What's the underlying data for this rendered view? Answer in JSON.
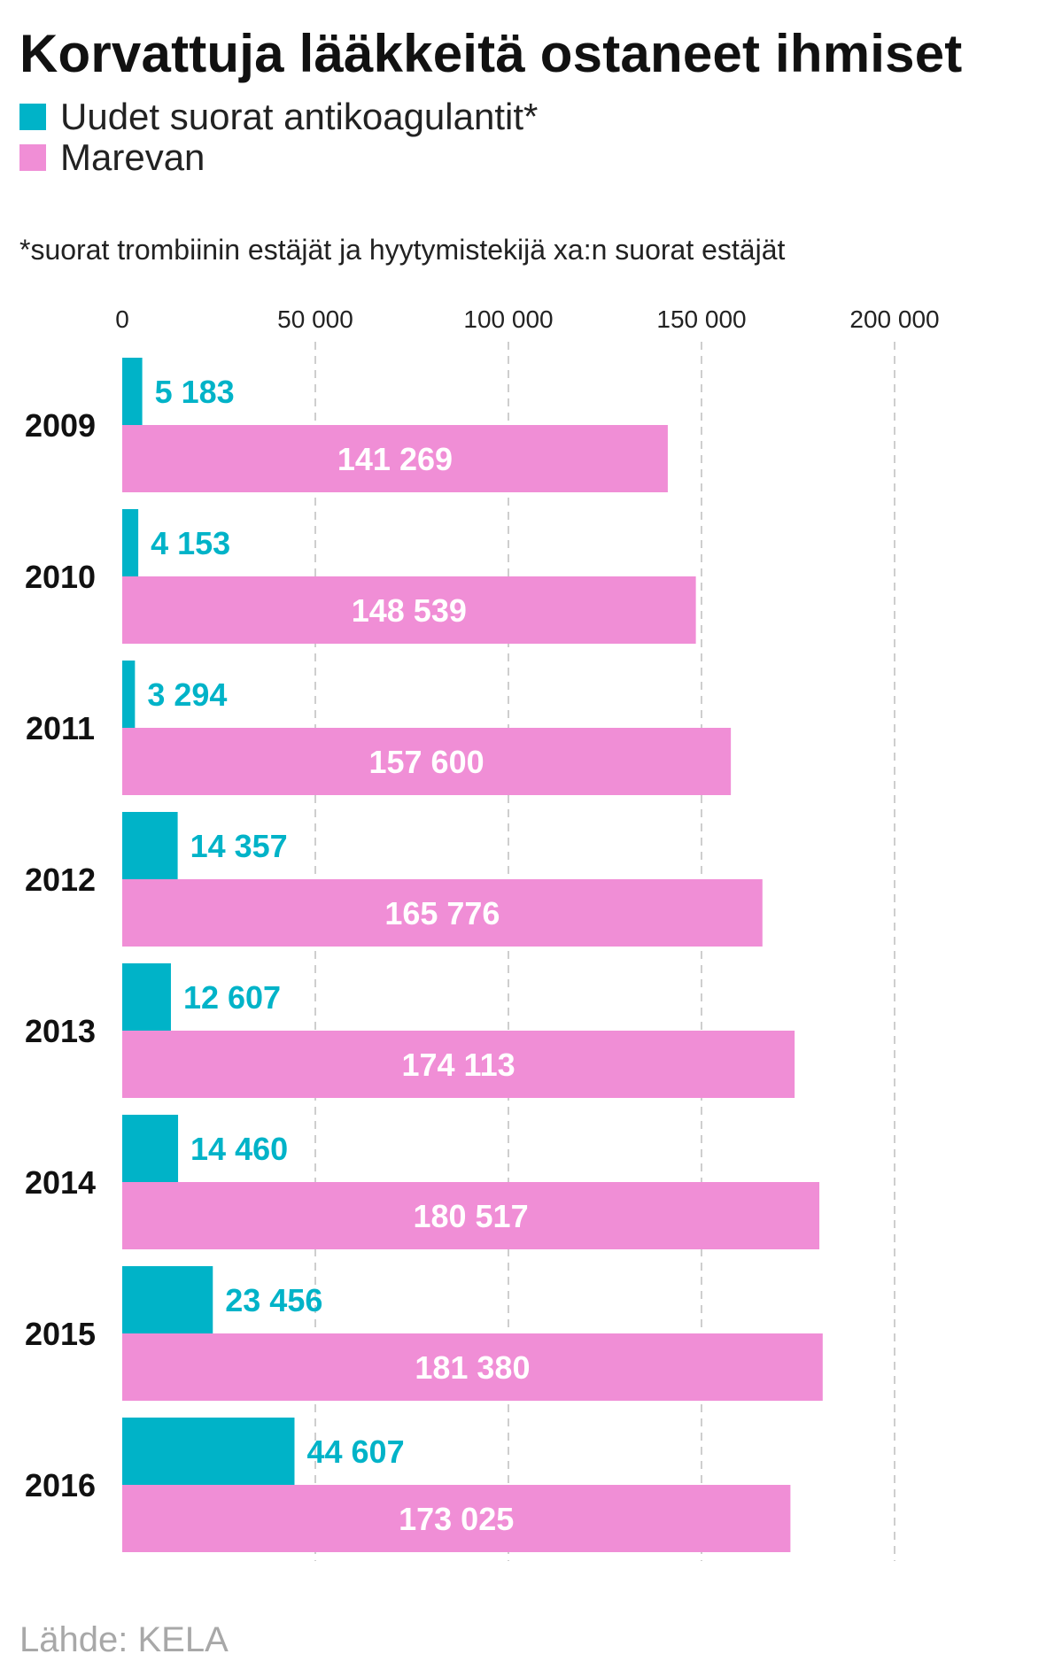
{
  "title": "Korvattuja lääkkeitä ostaneet ihmiset",
  "legend": [
    {
      "label": "Uudet suorat antikoagulantit*",
      "color": "#00b3c8"
    },
    {
      "label": "Marevan",
      "color": "#f08ed6"
    }
  ],
  "footnote": "*suorat trombiinin estäjät ja hyytymistekijä xa:n suorat estäjät",
  "source": "Lähde: KELA",
  "chart_data": {
    "type": "bar",
    "orientation": "horizontal",
    "categories": [
      "2009",
      "2010",
      "2011",
      "2012",
      "2013",
      "2014",
      "2015",
      "2016"
    ],
    "series": [
      {
        "name": "Uudet suorat antikoagulantit*",
        "color": "#00b3c8",
        "label_color": "#00b3c8",
        "values": [
          5183,
          4153,
          3294,
          14357,
          12607,
          14460,
          23456,
          44607
        ],
        "labels": [
          "5 183",
          "4 153",
          "3 294",
          "14 357",
          "12 607",
          "14 460",
          "23 456",
          "44 607"
        ]
      },
      {
        "name": "Marevan",
        "color": "#f08ed6",
        "label_color": "#ffffff",
        "values": [
          141269,
          148539,
          157600,
          165776,
          174113,
          180517,
          181380,
          173025
        ],
        "labels": [
          "141 269",
          "148 539",
          "157 600",
          "165 776",
          "174 113",
          "180 517",
          "181 380",
          "173 025"
        ]
      }
    ],
    "xlim": [
      0,
      200000
    ],
    "ticks": [
      0,
      50000,
      100000,
      150000,
      200000
    ],
    "tick_labels": [
      "0",
      "50 000",
      "100 000",
      "150 000",
      "200 000"
    ],
    "grid": true,
    "legend_position": "top-left"
  }
}
